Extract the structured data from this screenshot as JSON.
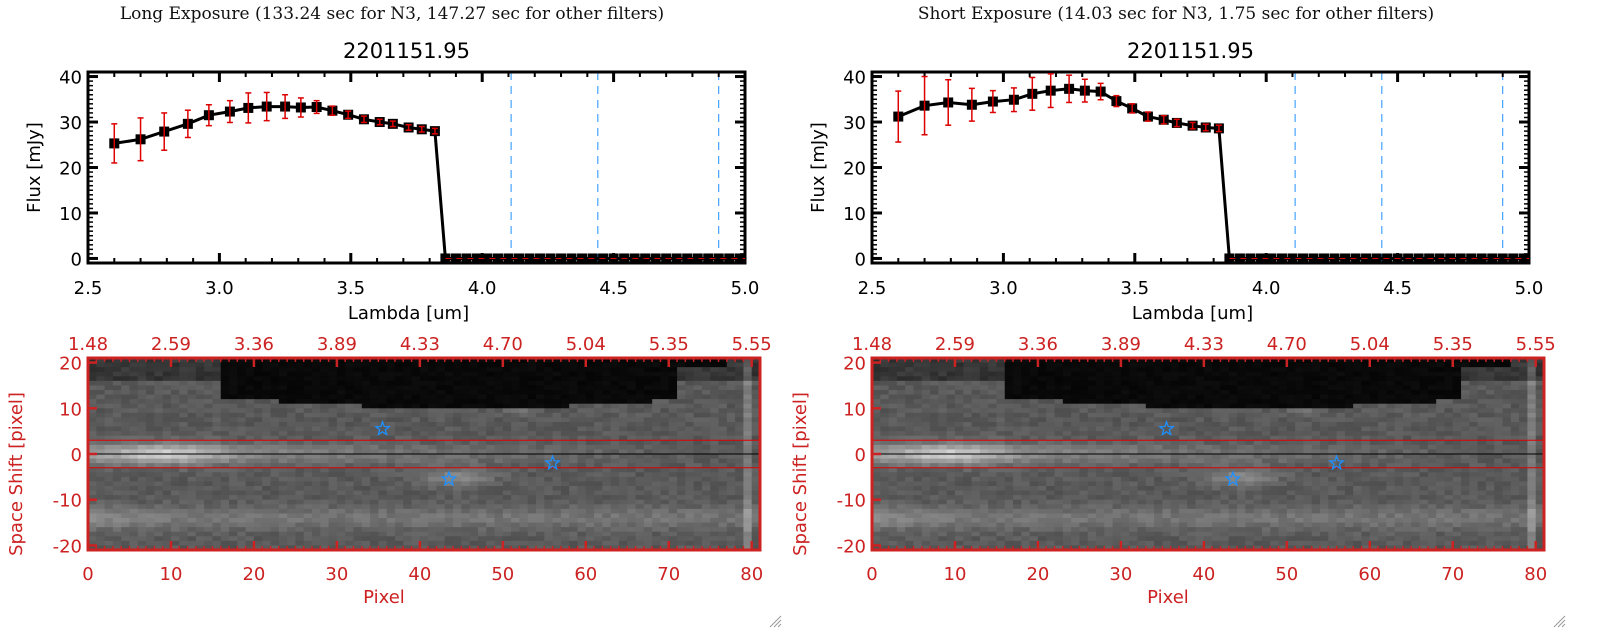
{
  "panels": [
    {
      "id": "long",
      "exposure_title": "Long Exposure (133.24 sec for N3, 147.27 sec for other filters)",
      "resize_grip_icon": "resize-grip-icon"
    },
    {
      "id": "short",
      "exposure_title": "Short Exposure (14.03 sec for N3, 1.75 sec for other filters)",
      "resize_grip_icon": "resize-grip-icon"
    }
  ],
  "chart_data": [
    {
      "type": "line",
      "panel": "long",
      "title": "2201151.95",
      "xlabel": "Lambda [um]",
      "ylabel": "Flux [mJy]",
      "xlim": [
        2.5,
        5.0
      ],
      "ylim": [
        -1,
        41
      ],
      "xticks": [
        "2.5",
        "3.0",
        "3.5",
        "4.0",
        "4.5",
        "5.0"
      ],
      "xtick_values": [
        2.5,
        3.0,
        3.5,
        4.0,
        4.5,
        5.0
      ],
      "yticks": [
        "0",
        "10",
        "20",
        "30",
        "40"
      ],
      "ytick_values": [
        0,
        10,
        20,
        30,
        40
      ],
      "vlines": [
        4.11,
        4.44,
        4.9
      ],
      "vline_color": "#1e90ff",
      "hline": 0,
      "hline_color": "#dd0000",
      "marker_color": "#000000",
      "errorbar_color": "#dd0000",
      "series": [
        {
          "name": "flux",
          "x": [
            2.6,
            2.7,
            2.79,
            2.88,
            2.96,
            3.04,
            3.11,
            3.18,
            3.25,
            3.31,
            3.37,
            3.43,
            3.49,
            3.55,
            3.61,
            3.66,
            3.72,
            3.77,
            3.82,
            3.86,
            3.9,
            3.94,
            3.98,
            4.02,
            4.06,
            4.1,
            4.14,
            4.18,
            4.22,
            4.26,
            4.3,
            4.34,
            4.38,
            4.42,
            4.46,
            4.5,
            4.54,
            4.58,
            4.62,
            4.66,
            4.7,
            4.74,
            4.78,
            4.82,
            4.86,
            4.9,
            4.94,
            4.98
          ],
          "y": [
            25.3,
            26.2,
            27.9,
            29.6,
            31.5,
            32.3,
            33.1,
            33.4,
            33.4,
            33.2,
            33.3,
            32.5,
            31.6,
            30.6,
            30.0,
            29.6,
            28.8,
            28.4,
            28.0,
            0,
            0,
            0,
            0,
            0,
            0,
            0,
            0,
            0,
            0,
            0,
            0,
            0,
            0,
            0,
            0,
            0,
            0,
            0,
            0,
            0,
            0,
            0,
            0,
            0,
            0,
            0,
            0,
            0
          ],
          "err": [
            4.3,
            4.7,
            4.1,
            3.0,
            2.3,
            2.4,
            3.3,
            3.1,
            2.6,
            2.1,
            1.4,
            1.0,
            0.8,
            0.7,
            0.6,
            0.6,
            0.6,
            0.6,
            0.6,
            0,
            0,
            0,
            0,
            0,
            0,
            0,
            0,
            0,
            0,
            0,
            0,
            0,
            0,
            0,
            0,
            0,
            0,
            0,
            0,
            0,
            0,
            0,
            0,
            0,
            0,
            0,
            0,
            0
          ]
        }
      ]
    },
    {
      "type": "line",
      "panel": "short",
      "title": "2201151.95",
      "xlabel": "Lambda [um]",
      "ylabel": "Flux [mJy]",
      "xlim": [
        2.5,
        5.0
      ],
      "ylim": [
        -1,
        41
      ],
      "xticks": [
        "2.5",
        "3.0",
        "3.5",
        "4.0",
        "4.5",
        "5.0"
      ],
      "xtick_values": [
        2.5,
        3.0,
        3.5,
        4.0,
        4.5,
        5.0
      ],
      "yticks": [
        "0",
        "10",
        "20",
        "30",
        "40"
      ],
      "ytick_values": [
        0,
        10,
        20,
        30,
        40
      ],
      "vlines": [
        4.11,
        4.44,
        4.9
      ],
      "vline_color": "#1e90ff",
      "hline": 0,
      "hline_color": "#dd0000",
      "marker_color": "#000000",
      "errorbar_color": "#dd0000",
      "series": [
        {
          "name": "flux",
          "x": [
            2.6,
            2.7,
            2.79,
            2.88,
            2.96,
            3.04,
            3.11,
            3.18,
            3.25,
            3.31,
            3.37,
            3.43,
            3.49,
            3.55,
            3.61,
            3.66,
            3.72,
            3.77,
            3.82,
            3.86,
            3.9,
            3.94,
            3.98,
            4.02,
            4.06,
            4.1,
            4.14,
            4.18,
            4.22,
            4.26,
            4.3,
            4.34,
            4.38,
            4.42,
            4.46,
            4.5,
            4.54,
            4.58,
            4.62,
            4.66,
            4.7,
            4.74,
            4.78,
            4.82,
            4.86,
            4.9,
            4.94,
            4.98
          ],
          "y": [
            31.2,
            33.6,
            34.3,
            33.8,
            34.5,
            34.9,
            36.2,
            36.9,
            37.3,
            36.9,
            36.7,
            34.6,
            33.0,
            31.2,
            30.5,
            29.8,
            29.2,
            28.8,
            28.6,
            0,
            0,
            0,
            0,
            0,
            0,
            0,
            0,
            0,
            0,
            0,
            0,
            0,
            0,
            0,
            0,
            0,
            0,
            0,
            0,
            0,
            0,
            0,
            0,
            0,
            0,
            0,
            0,
            0
          ],
          "err": [
            5.6,
            6.4,
            5.0,
            3.6,
            2.4,
            2.6,
            3.6,
            3.7,
            3.0,
            2.5,
            1.8,
            1.2,
            1.0,
            1.0,
            0.9,
            0.8,
            0.7,
            0.7,
            0.7,
            0,
            0,
            0,
            0,
            0,
            0,
            0,
            0,
            0,
            0,
            0,
            0,
            0,
            0,
            0,
            0,
            0,
            0,
            0,
            0,
            0,
            0,
            0,
            0,
            0,
            0,
            0,
            0,
            0
          ]
        }
      ]
    },
    {
      "type": "heatmap",
      "panel": "long",
      "xlabel": "Pixel",
      "ylabel": "Space Shift [pixel]",
      "xlim": [
        0,
        81
      ],
      "ylim": [
        -21,
        21
      ],
      "xticks": [
        "0",
        "10",
        "20",
        "30",
        "40",
        "50",
        "60",
        "70",
        "80"
      ],
      "xtick_values": [
        0,
        10,
        20,
        30,
        40,
        50,
        60,
        70,
        80
      ],
      "yticks": [
        "20",
        "10",
        "0",
        "-10",
        "-20"
      ],
      "ytick_values": [
        20,
        10,
        0,
        -10,
        -20
      ],
      "top_axis_ticks": [
        "1.48",
        "2.59",
        "3.36",
        "3.89",
        "4.33",
        "4.70",
        "5.04",
        "5.35",
        "5.55"
      ],
      "top_axis_tick_positions": [
        0,
        10,
        20,
        30,
        40,
        50,
        60,
        70,
        80
      ],
      "axis_color": "#cc2222",
      "aperture_lines": [
        3,
        -3
      ],
      "aperture_color": "#dd0000",
      "center_line": 0,
      "markers": [
        {
          "x": 35.5,
          "y": 5.5,
          "symbol": "star-open",
          "color": "#1e90ff"
        },
        {
          "x": 43.5,
          "y": -5.5,
          "symbol": "star-open",
          "color": "#1e90ff"
        },
        {
          "x": 56.0,
          "y": -2.0,
          "symbol": "star-open",
          "color": "#1e90ff"
        }
      ]
    },
    {
      "type": "heatmap",
      "panel": "short",
      "xlabel": "Pixel",
      "ylabel": "Space Shift [pixel]",
      "xlim": [
        0,
        81
      ],
      "ylim": [
        -21,
        21
      ],
      "xticks": [
        "0",
        "10",
        "20",
        "30",
        "40",
        "50",
        "60",
        "70",
        "80"
      ],
      "xtick_values": [
        0,
        10,
        20,
        30,
        40,
        50,
        60,
        70,
        80
      ],
      "yticks": [
        "20",
        "10",
        "0",
        "-10",
        "-20"
      ],
      "ytick_values": [
        20,
        10,
        0,
        -10,
        -20
      ],
      "top_axis_ticks": [
        "1.48",
        "2.59",
        "3.36",
        "3.89",
        "4.33",
        "4.70",
        "5.04",
        "5.35",
        "5.55"
      ],
      "top_axis_tick_positions": [
        0,
        10,
        20,
        30,
        40,
        50,
        60,
        70,
        80
      ],
      "axis_color": "#cc2222",
      "aperture_lines": [
        3,
        -3
      ],
      "aperture_color": "#dd0000",
      "center_line": 0,
      "markers": [
        {
          "x": 35.5,
          "y": 5.5,
          "symbol": "star-open",
          "color": "#1e90ff"
        },
        {
          "x": 43.5,
          "y": -5.5,
          "symbol": "star-open",
          "color": "#1e90ff"
        },
        {
          "x": 56.0,
          "y": -2.0,
          "symbol": "star-open",
          "color": "#1e90ff"
        }
      ]
    }
  ]
}
